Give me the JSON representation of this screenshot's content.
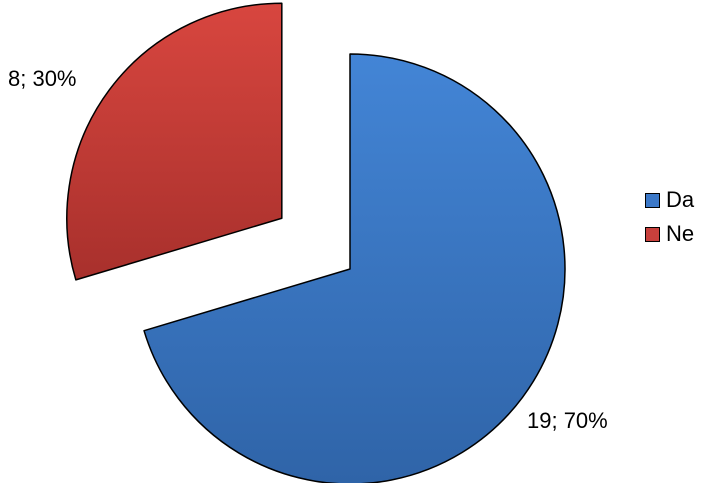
{
  "chart_data": {
    "type": "pie",
    "slices": [
      {
        "label": "Da",
        "value": 19,
        "percent": 70,
        "data_label": "19; 70%",
        "color": "#3B78C8",
        "exploded": false
      },
      {
        "label": "Ne",
        "value": 8,
        "percent": 30,
        "data_label": "8; 30%",
        "color": "#C8403C",
        "exploded": true
      }
    ],
    "start_angle_deg": 0,
    "direction": "clockwise",
    "legend_position": "right"
  }
}
